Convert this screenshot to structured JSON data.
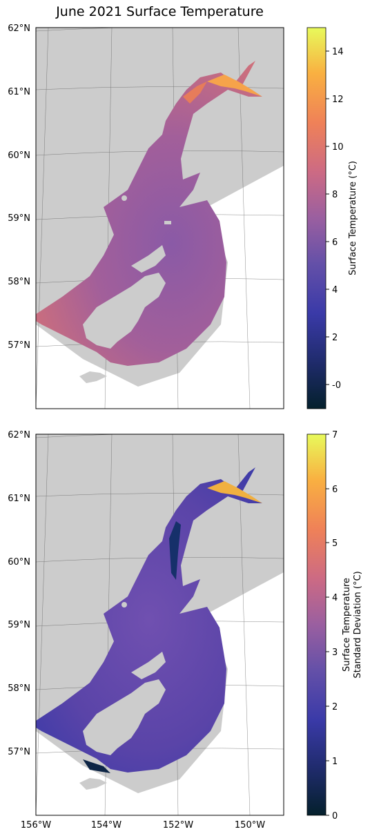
{
  "title": "June 2021 Surface Temperature",
  "lat_labels": [
    "62°N",
    "61°N",
    "60°N",
    "59°N",
    "58°N",
    "57°N"
  ],
  "lon_labels": [
    "156°W",
    "154°W",
    "152°W",
    "150°W"
  ],
  "colors": {
    "land": "#cccccc",
    "frame": "#000000",
    "graticule": "#555555"
  },
  "panels": [
    {
      "colorbar_label": "Surface Temperature (°C)",
      "colorbar_ticks": [
        "-0",
        "2",
        "4",
        "6",
        "8",
        "10",
        "12",
        "14"
      ],
      "colorbar_min": -1,
      "colorbar_max": 15,
      "colormap": "thermal",
      "ocean_color": "#b05a86",
      "highlight_color": "#f6a34a"
    },
    {
      "colorbar_label": "Surface Temperature\nStandard Deviation (°C)",
      "colorbar_label_line1": "Surface Temperature",
      "colorbar_label_line2": "Standard Deviation (°C)",
      "colorbar_ticks": [
        "0",
        "1",
        "2",
        "3",
        "4",
        "5",
        "6",
        "7"
      ],
      "colorbar_min": 0,
      "colorbar_max": 7,
      "colormap": "thermal",
      "ocean_color": "#5a44a8",
      "highlight_color": "#f0b040"
    }
  ]
}
